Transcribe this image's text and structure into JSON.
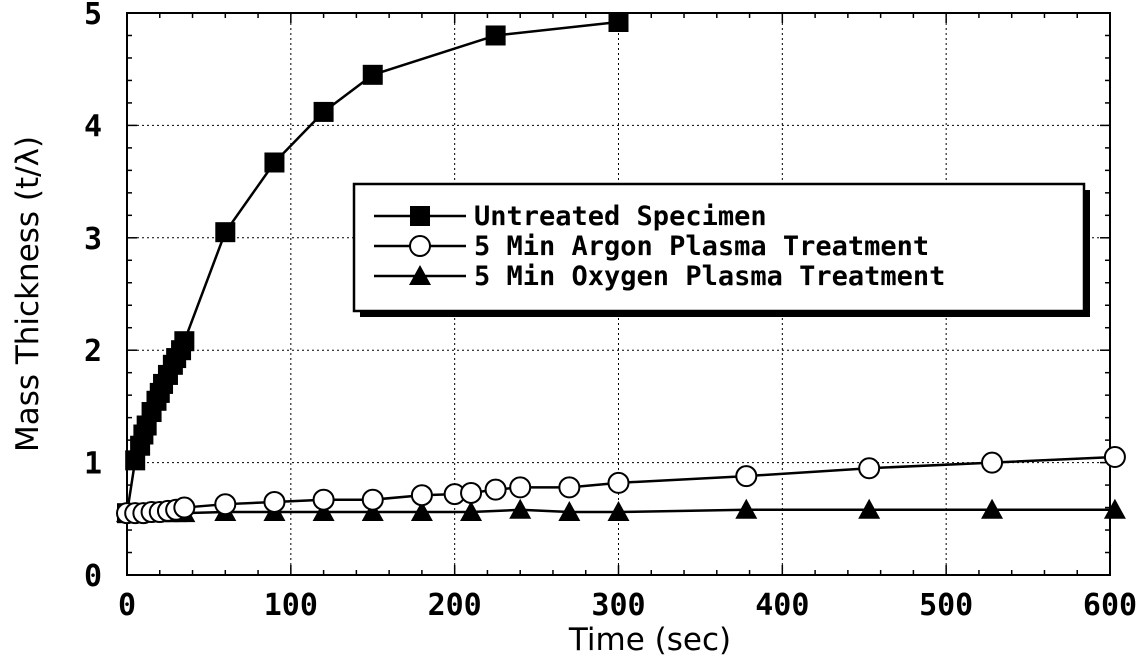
{
  "chart_data": {
    "type": "line",
    "xlabel": "Time (sec)",
    "ylabel": "Mass Thickness  (t/λ)",
    "xlim": [
      0,
      600
    ],
    "ylim": [
      0,
      5
    ],
    "xticks": [
      "0",
      "100",
      "200",
      "300",
      "400",
      "500",
      "600"
    ],
    "yticks": [
      "0",
      "1",
      "2",
      "3",
      "4",
      "5"
    ],
    "grid": true,
    "legend_position": "center-right",
    "series": [
      {
        "name": "Untreated Specimen",
        "marker": "filled-square",
        "x": [
          0,
          5,
          8,
          10,
          12,
          15,
          18,
          20,
          22,
          25,
          28,
          30,
          33,
          35,
          60,
          90,
          120,
          150,
          225,
          300
        ],
        "y": [
          0.55,
          1.02,
          1.15,
          1.25,
          1.33,
          1.45,
          1.55,
          1.62,
          1.7,
          1.78,
          1.87,
          1.93,
          2.0,
          2.08,
          3.05,
          3.67,
          4.12,
          4.45,
          4.8,
          4.92
        ]
      },
      {
        "name": "5 Min Argon Plasma Treatment",
        "marker": "open-circle",
        "x": [
          0,
          5,
          10,
          15,
          20,
          25,
          30,
          35,
          60,
          90,
          120,
          150,
          180,
          200,
          210,
          225,
          240,
          270,
          300,
          378,
          453,
          528,
          603
        ],
        "y": [
          0.55,
          0.55,
          0.55,
          0.56,
          0.56,
          0.57,
          0.58,
          0.6,
          0.63,
          0.65,
          0.67,
          0.67,
          0.71,
          0.72,
          0.73,
          0.76,
          0.78,
          0.78,
          0.82,
          0.88,
          0.95,
          1.0,
          1.05
        ]
      },
      {
        "name": "5 Min Oxygen Plasma Treatment",
        "marker": "filled-triangle",
        "x": [
          0,
          5,
          10,
          15,
          20,
          25,
          30,
          35,
          60,
          90,
          120,
          150,
          180,
          210,
          240,
          270,
          300,
          378,
          453,
          528,
          603
        ],
        "y": [
          0.55,
          0.55,
          0.55,
          0.55,
          0.55,
          0.55,
          0.55,
          0.55,
          0.56,
          0.56,
          0.56,
          0.56,
          0.56,
          0.56,
          0.58,
          0.56,
          0.56,
          0.58,
          0.58,
          0.58,
          0.58
        ]
      }
    ]
  }
}
